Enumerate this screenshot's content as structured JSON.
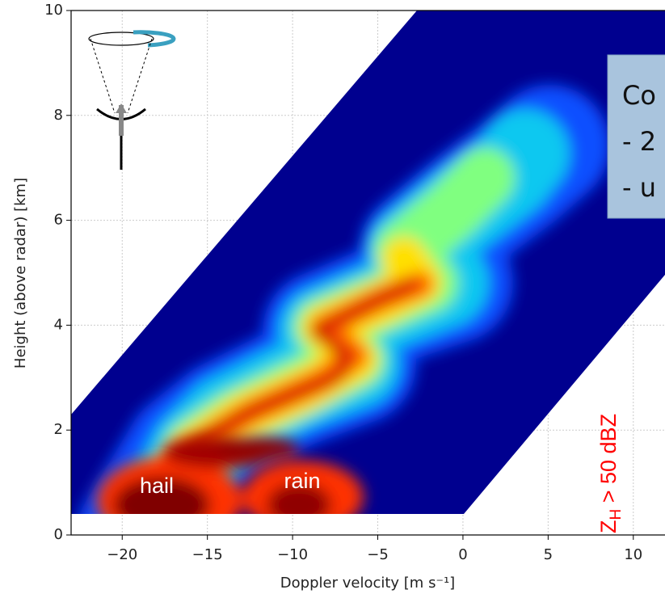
{
  "chart_data": {
    "type": "spectrogram",
    "xlabel": "Doppler velocity [m s⁻¹]",
    "ylabel": "Height (above radar) [km]",
    "xlim": [
      -23,
      11.86
    ],
    "ylim": [
      0,
      10
    ],
    "xticks": [
      {
        "value": -20,
        "label": "−20"
      },
      {
        "value": -15,
        "label": "−15"
      },
      {
        "value": -10,
        "label": "−10"
      },
      {
        "value": -5,
        "label": "−5"
      },
      0,
      5,
      10
    ],
    "yticks": [
      0,
      2,
      4,
      6,
      8,
      10
    ],
    "grid": true,
    "annotations": [
      "hail",
      "rain"
    ],
    "threshold_label": {
      "symbol": "Z",
      "subscript": "H",
      "text": " > 50 dBZ"
    },
    "box_lines": [
      "Co",
      "- 2",
      "- u"
    ]
  }
}
